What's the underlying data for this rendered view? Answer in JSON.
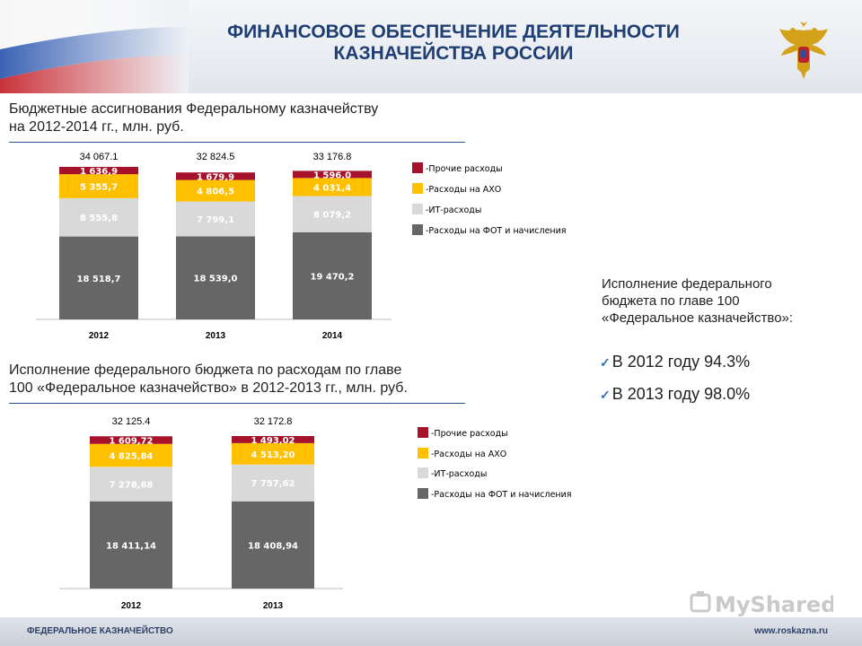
{
  "header": {
    "title_line1": "ФИНАНСОВОЕ ОБЕСПЕЧЕНИЕ ДЕЯТЕЛЬНОСТИ",
    "title_line2": "КАЗНАЧЕЙСТВА РОССИИ"
  },
  "section1": {
    "title_line1": "Бюджетные ассигнования Федеральному казначейству",
    "title_line2": "на 2012-2014 гг., млн. руб."
  },
  "section2": {
    "title_line1": "Исполнение федерального бюджета по расходам по главе",
    "title_line2": "100 «Федеральное казначейство» в 2012-2013 гг., млн. руб."
  },
  "side": {
    "title_line1": "Исполнение федерального",
    "title_line2": "бюджета по главе 100",
    "title_line3": "«Федеральное казначейство»:",
    "items": [
      "В 2012 году 94.3%",
      "В 2013 году 98.0%"
    ]
  },
  "footer": {
    "left": "ФЕДЕРАЛЬНОЕ КАЗНАЧЕЙСТВО",
    "right": "www.roskazna.ru"
  },
  "watermark": {
    "text": "MyShared"
  },
  "colors": {
    "title": "#1f3e74",
    "fot": "#666666",
    "it": "#d9d9d9",
    "axo": "#ffc000",
    "other": "#a5122a"
  },
  "chart_data": [
    {
      "type": "bar",
      "stacked": true,
      "categories": [
        "2012",
        "2013",
        "2014"
      ],
      "totals": [
        "34 067.1",
        "32 824.5",
        "33 176.8"
      ],
      "series": [
        {
          "name": "-Расходы на ФОТ и начисления",
          "color": "#666666",
          "values": [
            18518.7,
            18539.0,
            19470.2
          ],
          "labels": [
            "18 518,7",
            "18 539,0",
            "19 470,2"
          ]
        },
        {
          "name": "-ИТ-расходы",
          "color": "#d9d9d9",
          "values": [
            8555.8,
            7799.1,
            8079.2
          ],
          "labels": [
            "8 555,8",
            "7 799,1",
            "8 079,2"
          ]
        },
        {
          "name": "-Расходы на АХО",
          "color": "#ffc000",
          "values": [
            5355.7,
            4806.5,
            4031.4
          ],
          "labels": [
            "5 355,7",
            "4 806,5",
            "4 031,4"
          ]
        },
        {
          "name": "-Прочие расходы",
          "color": "#a5122a",
          "values": [
            1636.9,
            1679.9,
            1596.0
          ],
          "labels": [
            "1 636,9",
            "1 679,9",
            "1 596,0"
          ]
        }
      ]
    },
    {
      "type": "bar",
      "stacked": true,
      "categories": [
        "2012",
        "2013"
      ],
      "totals": [
        "32 125.4",
        "32 172.8"
      ],
      "series": [
        {
          "name": "-Расходы на ФОТ и начисления",
          "color": "#666666",
          "values": [
            18411.14,
            18408.94
          ],
          "labels": [
            "18 411,14",
            "18 408,94"
          ]
        },
        {
          "name": "-ИТ-расходы",
          "color": "#d9d9d9",
          "values": [
            7278.68,
            7757.62
          ],
          "labels": [
            "7 278,68",
            "7 757,62"
          ]
        },
        {
          "name": "-Расходы на АХО",
          "color": "#ffc000",
          "values": [
            4825.84,
            4513.2
          ],
          "labels": [
            "4 825,84",
            "4 513,20"
          ]
        },
        {
          "name": "-Прочие расходы",
          "color": "#a5122a",
          "values": [
            1609.72,
            1493.02
          ],
          "labels": [
            "1 609,72",
            "1 493,02"
          ]
        }
      ]
    }
  ]
}
